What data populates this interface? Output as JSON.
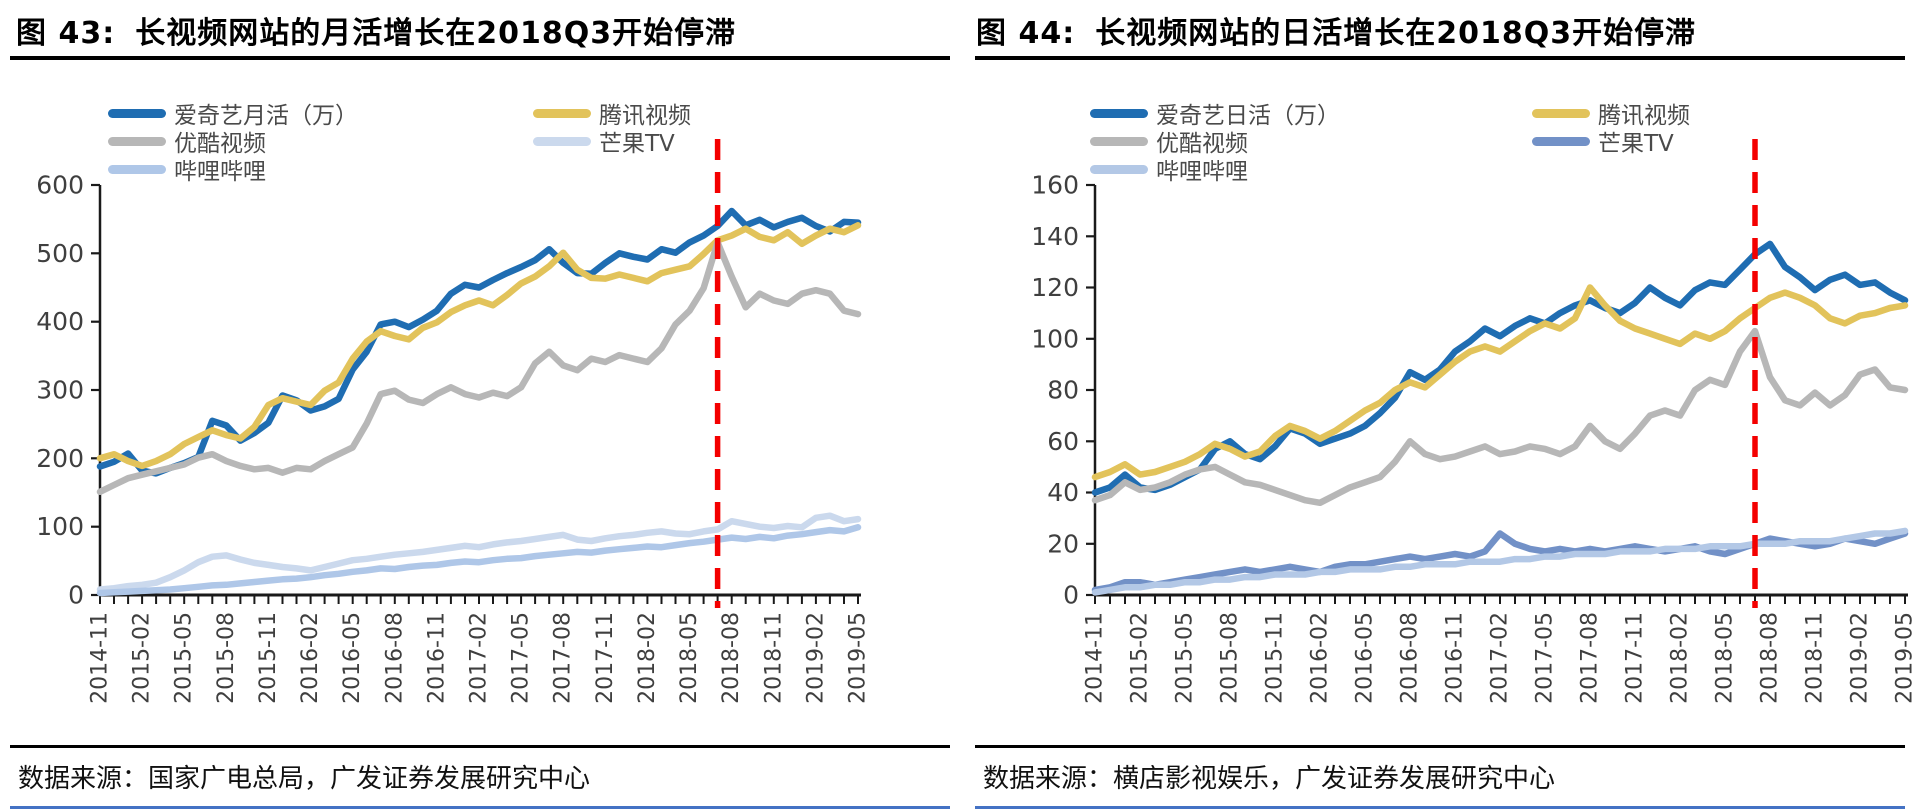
{
  "chart_data": [
    {
      "type": "line",
      "fig_label": "图 43:",
      "title": "长视频网站的月活增长在2018Q3开始停滞",
      "source": "数据来源：国家广电总局，广发证券发展研究中心",
      "ylim": [
        0,
        600
      ],
      "yticks": [
        0,
        100,
        200,
        300,
        400,
        500,
        600
      ],
      "x_label_every": 3,
      "grid": false,
      "legend_position": "top",
      "x": [
        "2014-11",
        "2014-12",
        "2015-01",
        "2015-02",
        "2015-03",
        "2015-04",
        "2015-05",
        "2015-06",
        "2015-07",
        "2015-08",
        "2015-09",
        "2015-10",
        "2015-11",
        "2015-12",
        "2016-01",
        "2016-02",
        "2016-03",
        "2016-04",
        "2016-05",
        "2016-06",
        "2016-07",
        "2016-08",
        "2016-09",
        "2016-10",
        "2016-11",
        "2016-12",
        "2017-01",
        "2017-02",
        "2017-03",
        "2017-04",
        "2017-05",
        "2017-06",
        "2017-07",
        "2017-08",
        "2017-09",
        "2017-10",
        "2017-11",
        "2017-12",
        "2018-01",
        "2018-02",
        "2018-03",
        "2018-04",
        "2018-05",
        "2018-06",
        "2018-07",
        "2018-08",
        "2018-09",
        "2018-10",
        "2018-11",
        "2018-12",
        "2019-01",
        "2019-02",
        "2019-03",
        "2019-04",
        "2019-05"
      ],
      "annotation": {
        "type": "vline-dashed",
        "x": "2018-07",
        "color": "#f40000"
      },
      "series": [
        {
          "name": "爱奇艺月活（万）",
          "color": "#1f6db2",
          "values": [
            188,
            195,
            207,
            182,
            178,
            186,
            193,
            202,
            255,
            248,
            226,
            237,
            252,
            292,
            285,
            270,
            276,
            287,
            330,
            356,
            396,
            400,
            392,
            403,
            416,
            441,
            454,
            450,
            461,
            471,
            480,
            490,
            506,
            486,
            471,
            470,
            486,
            500,
            495,
            491,
            506,
            501,
            516,
            526,
            540,
            562,
            541,
            549,
            538,
            546,
            552,
            540,
            532,
            546,
            545
          ]
        },
        {
          "name": "腾讯视频",
          "color": "#e2c35b",
          "values": [
            200,
            206,
            196,
            189,
            196,
            206,
            221,
            231,
            241,
            234,
            229,
            246,
            278,
            288,
            283,
            278,
            299,
            311,
            346,
            371,
            386,
            379,
            374,
            391,
            399,
            414,
            424,
            431,
            424,
            439,
            456,
            466,
            481,
            501,
            476,
            464,
            463,
            469,
            464,
            459,
            471,
            476,
            481,
            499,
            519,
            526,
            536,
            524,
            519,
            531,
            514,
            526,
            536,
            531,
            541
          ]
        },
        {
          "name": "优酷视频",
          "color": "#b7b7b7",
          "values": [
            151,
            161,
            171,
            176,
            181,
            186,
            191,
            201,
            206,
            196,
            189,
            184,
            186,
            179,
            186,
            184,
            196,
            206,
            216,
            251,
            294,
            299,
            286,
            281,
            294,
            304,
            294,
            289,
            296,
            291,
            304,
            339,
            356,
            336,
            329,
            346,
            341,
            351,
            346,
            341,
            361,
            396,
            416,
            449,
            516,
            466,
            421,
            441,
            431,
            426,
            441,
            446,
            441,
            416,
            411
          ]
        },
        {
          "name": "芒果TV",
          "color": "#cbd9ed",
          "values": [
            8,
            10,
            13,
            15,
            18,
            26,
            36,
            48,
            56,
            58,
            52,
            47,
            44,
            41,
            39,
            36,
            41,
            46,
            51,
            53,
            56,
            59,
            61,
            63,
            66,
            69,
            72,
            70,
            74,
            77,
            79,
            82,
            85,
            88,
            81,
            79,
            83,
            86,
            88,
            91,
            93,
            90,
            89,
            93,
            96,
            108,
            104,
            100,
            98,
            101,
            99,
            113,
            116,
            108,
            111
          ]
        },
        {
          "name": "哔哩哔哩",
          "color": "#afc7e8",
          "values": [
            3,
            4,
            5,
            6,
            7,
            8,
            10,
            12,
            14,
            15,
            17,
            19,
            21,
            23,
            24,
            26,
            29,
            31,
            34,
            36,
            39,
            38,
            41,
            43,
            44,
            47,
            49,
            48,
            51,
            53,
            54,
            57,
            59,
            61,
            63,
            62,
            65,
            67,
            69,
            71,
            70,
            73,
            76,
            78,
            81,
            84,
            82,
            85,
            83,
            87,
            89,
            92,
            95,
            93,
            99
          ]
        }
      ]
    },
    {
      "type": "line",
      "fig_label": "图 44:",
      "title": "长视频网站的日活增长在2018Q3开始停滞",
      "source": "数据来源：横店影视娱乐，广发证券发展研究中心",
      "ylim": [
        0,
        160
      ],
      "yticks": [
        0,
        20,
        40,
        60,
        80,
        100,
        120,
        140,
        160
      ],
      "x_label_every": 3,
      "grid": false,
      "legend_position": "top",
      "x": [
        "2014-11",
        "2014-12",
        "2015-01",
        "2015-02",
        "2015-03",
        "2015-04",
        "2015-05",
        "2015-06",
        "2015-07",
        "2015-08",
        "2015-09",
        "2015-10",
        "2015-11",
        "2015-12",
        "2016-01",
        "2016-02",
        "2016-03",
        "2016-04",
        "2016-05",
        "2016-06",
        "2016-07",
        "2016-08",
        "2016-09",
        "2016-10",
        "2016-11",
        "2016-12",
        "2017-01",
        "2017-02",
        "2017-03",
        "2017-04",
        "2017-05",
        "2017-06",
        "2017-07",
        "2017-08",
        "2017-09",
        "2017-10",
        "2017-11",
        "2017-12",
        "2018-01",
        "2018-02",
        "2018-03",
        "2018-04",
        "2018-05",
        "2018-06",
        "2018-07",
        "2018-08",
        "2018-09",
        "2018-10",
        "2018-11",
        "2018-12",
        "2019-01",
        "2019-02",
        "2019-03",
        "2019-04",
        "2019-05"
      ],
      "annotation": {
        "type": "vline-dashed",
        "x": "2018-07",
        "color": "#f40000"
      },
      "series": [
        {
          "name": "爱奇艺日活（万）",
          "color": "#1f6db2",
          "values": [
            40,
            42,
            47,
            42,
            41,
            43,
            46,
            49,
            57,
            60,
            55,
            53,
            58,
            65,
            63,
            59,
            61,
            63,
            66,
            71,
            77,
            87,
            84,
            88,
            95,
            99,
            104,
            101,
            105,
            108,
            106,
            110,
            113,
            115,
            112,
            110,
            114,
            120,
            116,
            113,
            119,
            122,
            121,
            127,
            133,
            137,
            128,
            124,
            119,
            123,
            125,
            121,
            122,
            118,
            115
          ]
        },
        {
          "name": "腾讯视频",
          "color": "#e2c35b",
          "values": [
            46,
            48,
            51,
            47,
            48,
            50,
            52,
            55,
            59,
            57,
            54,
            56,
            62,
            66,
            64,
            61,
            64,
            68,
            72,
            75,
            80,
            83,
            81,
            86,
            91,
            95,
            97,
            95,
            99,
            103,
            106,
            104,
            108,
            120,
            113,
            107,
            104,
            102,
            100,
            98,
            102,
            100,
            103,
            108,
            112,
            116,
            118,
            116,
            113,
            108,
            106,
            109,
            110,
            112,
            113
          ]
        },
        {
          "name": "优酷视频",
          "color": "#b7b7b7",
          "values": [
            37,
            39,
            44,
            41,
            42,
            44,
            47,
            49,
            50,
            47,
            44,
            43,
            41,
            39,
            37,
            36,
            39,
            42,
            44,
            46,
            52,
            60,
            55,
            53,
            54,
            56,
            58,
            55,
            56,
            58,
            57,
            55,
            58,
            66,
            60,
            57,
            63,
            70,
            72,
            70,
            80,
            84,
            82,
            95,
            103,
            85,
            76,
            74,
            79,
            74,
            78,
            86,
            88,
            81,
            80
          ]
        },
        {
          "name": "芒果TV",
          "color": "#7291c7",
          "values": [
            2,
            3,
            5,
            5,
            4,
            5,
            6,
            7,
            8,
            9,
            10,
            9,
            10,
            11,
            10,
            9,
            11,
            12,
            12,
            13,
            14,
            15,
            14,
            15,
            16,
            15,
            17,
            24,
            20,
            18,
            17,
            18,
            17,
            18,
            17,
            18,
            19,
            18,
            17,
            18,
            19,
            17,
            16,
            18,
            20,
            22,
            21,
            20,
            19,
            20,
            22,
            21,
            20,
            22,
            24
          ]
        },
        {
          "name": "哔哩哔哩",
          "color": "#b3c8e6",
          "values": [
            1,
            2,
            3,
            3,
            4,
            4,
            5,
            5,
            6,
            6,
            7,
            7,
            8,
            8,
            8,
            9,
            9,
            10,
            10,
            10,
            11,
            11,
            12,
            12,
            12,
            13,
            13,
            13,
            14,
            14,
            15,
            15,
            16,
            16,
            16,
            17,
            17,
            17,
            18,
            18,
            18,
            19,
            19,
            19,
            20,
            20,
            20,
            21,
            21,
            21,
            22,
            23,
            24,
            24,
            25
          ]
        }
      ]
    }
  ]
}
